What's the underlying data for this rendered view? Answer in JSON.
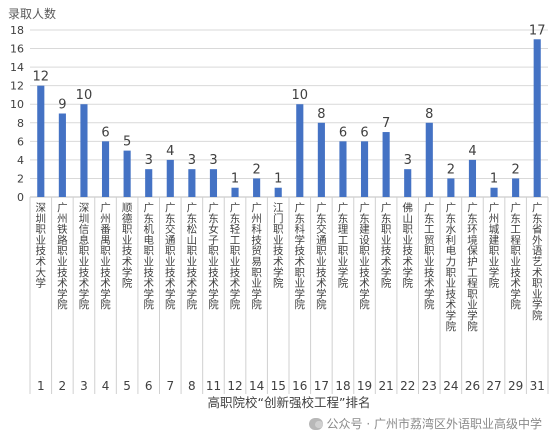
{
  "colors": {
    "bar": "#4472C4",
    "grid": "#d9d9d9",
    "axis": "#595959",
    "text": "#404040"
  },
  "watermark": {
    "text": "公众号 · 广州市荔湾区外语职业高级中学",
    "icon": "wechat-icon"
  },
  "chart_data": {
    "type": "bar",
    "title": "",
    "ylabel": "录取人数",
    "xlabel": "高职院校“创新强校工程”排名",
    "ylim": [
      0,
      18
    ],
    "yticks": [
      0,
      2,
      4,
      6,
      8,
      10,
      12,
      14,
      16,
      18
    ],
    "grid": true,
    "categories": [
      "深圳职业技术大学",
      "广州铁路职业技术学院",
      "深圳信息职业技术学院",
      "广州番禺职业技术学院",
      "顺德职业技术学院",
      "广东机电职业技术学院",
      "广东交通职业技术学院",
      "广东松山职业技术学院",
      "广东女子职业技术学院",
      "广东轻工职业技术学院",
      "广州科技贸易职业学院",
      "江门职业技术学院",
      "广东科学技术职业学院",
      "广东交通职业技术学院",
      "广东理工职业学院",
      "广东建设职业技术学院",
      "广东职业技术学院",
      "佛山职业技术学院",
      "广东工贸职业技术学院",
      "广东水利电力职业技术学院",
      "广东环境保护工程职业学院",
      "广州城建职业学院",
      "广东工程职业技术学院",
      "广东省外语艺术职业学院"
    ],
    "ranks": [
      "1",
      "2",
      "3",
      "4",
      "5",
      "6",
      "7",
      "8",
      "11",
      "12",
      "14",
      "15",
      "16",
      "17",
      "18",
      "19",
      "21",
      "22",
      "23",
      "24",
      "26",
      "27",
      "29",
      "31"
    ],
    "values": [
      12,
      9,
      10,
      6,
      5,
      3,
      4,
      3,
      3,
      1,
      2,
      1,
      10,
      8,
      6,
      6,
      7,
      3,
      8,
      2,
      4,
      1,
      2,
      17
    ]
  }
}
